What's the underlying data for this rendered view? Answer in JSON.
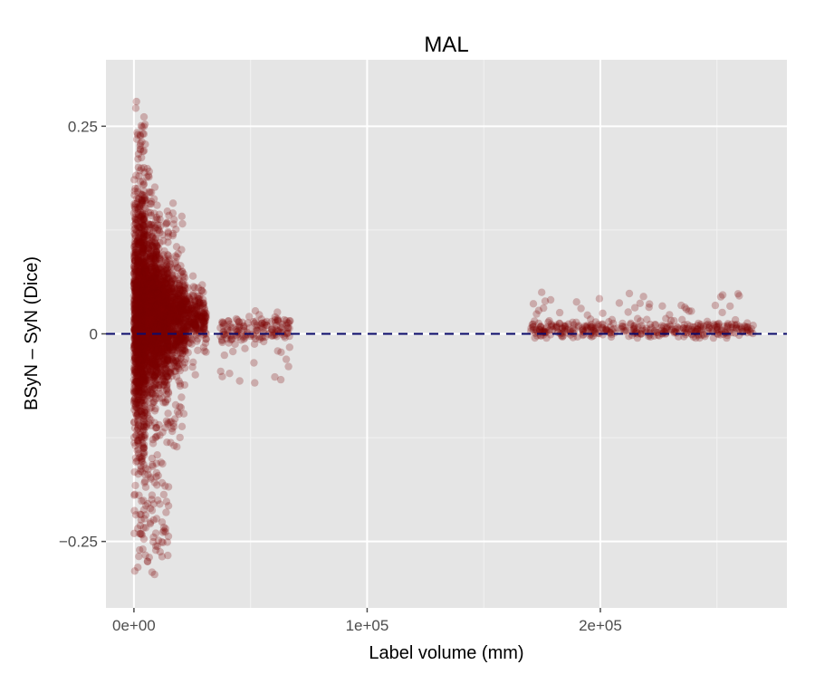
{
  "chart_data": {
    "type": "scatter",
    "title": "MAL",
    "xlabel": "Label volume (mm)",
    "ylabel": "BSyN – SyN (Dice)",
    "xlim": [
      -12000,
      280000
    ],
    "ylim": [
      -0.33,
      0.33
    ],
    "x_ticks": [
      {
        "value": 0,
        "label": "0e+00"
      },
      {
        "value": 100000,
        "label": "1e+05"
      },
      {
        "value": 200000,
        "label": "2e+05"
      }
    ],
    "y_ticks": [
      {
        "value": -0.25,
        "label": "−0.25"
      },
      {
        "value": 0,
        "label": "0"
      },
      {
        "value": 0.25,
        "label": "0.25"
      }
    ],
    "grid": true,
    "reference_line": {
      "y": 0,
      "style": "dashed"
    },
    "point_clusters": [
      {
        "x_range": [
          0,
          5000
        ],
        "y_mean": 0.02,
        "y_spread": 0.07,
        "y_range": [
          -0.29,
          0.28
        ],
        "n": 1400
      },
      {
        "x_range": [
          5000,
          10000
        ],
        "y_mean": 0.02,
        "y_spread": 0.05,
        "y_range": [
          -0.29,
          0.2
        ],
        "n": 900
      },
      {
        "x_range": [
          10000,
          15000
        ],
        "y_mean": 0.02,
        "y_spread": 0.04,
        "y_range": [
          -0.27,
          0.17
        ],
        "n": 700
      },
      {
        "x_range": [
          15000,
          22000
        ],
        "y_mean": 0.02,
        "y_spread": 0.03,
        "y_range": [
          -0.14,
          0.16
        ],
        "n": 500
      },
      {
        "x_range": [
          22000,
          31000
        ],
        "y_mean": 0.02,
        "y_spread": 0.015,
        "y_range": [
          -0.05,
          0.07
        ],
        "n": 250
      },
      {
        "x_range": [
          37000,
          67000
        ],
        "y_mean": 0.005,
        "y_spread": 0.008,
        "y_range": [
          -0.06,
          0.03
        ],
        "n": 160
      },
      {
        "x_range": [
          170000,
          266000
        ],
        "y_mean": 0.005,
        "y_spread": 0.005,
        "y_range": [
          -0.005,
          0.05
        ],
        "n": 380
      }
    ],
    "colors": {
      "point": "#7a0000",
      "panel": "#e5e5e5",
      "grid_major": "#ffffff",
      "grid_minor": "#f2f2f2",
      "reference_line": "#0b0b6b"
    }
  }
}
